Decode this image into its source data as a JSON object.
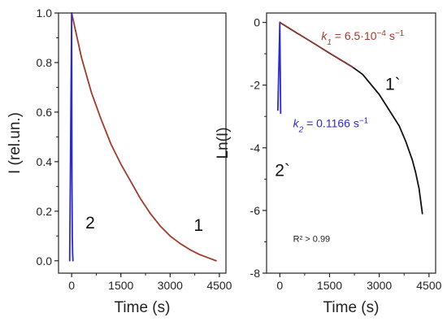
{
  "chart_data": [
    {
      "type": "line",
      "xlabel": "Time (s)",
      "ylabel": "I (rel.un.)",
      "xlim": [
        -400,
        4700
      ],
      "ylim": [
        -0.05,
        1.0
      ],
      "xticks": [
        "0",
        "1500",
        "3000",
        "4500"
      ],
      "yticks": [
        "0.0",
        "0.2",
        "0.4",
        "0.6",
        "0.8",
        "1.0"
      ],
      "series": [
        {
          "name": "1",
          "color": "#a33a2a",
          "x": [
            0,
            300,
            600,
            900,
            1200,
            1500,
            1800,
            2100,
            2400,
            2700,
            3000,
            3300,
            3600,
            3900,
            4200,
            4400
          ],
          "y": [
            1.0,
            0.82,
            0.68,
            0.57,
            0.47,
            0.39,
            0.32,
            0.25,
            0.19,
            0.14,
            0.1,
            0.07,
            0.045,
            0.025,
            0.01,
            0.0
          ]
        },
        {
          "name": "2",
          "color": "#2a2ad0",
          "x": [
            -60,
            0,
            5,
            10,
            20,
            30,
            40
          ],
          "y": [
            0.0,
            1.0,
            0.55,
            0.31,
            0.1,
            0.03,
            0.0
          ]
        }
      ],
      "curve_labels": [
        {
          "text": "1",
          "x": 3720,
          "y": 0.12,
          "color": "#111111"
        },
        {
          "text": "2",
          "x": 420,
          "y": 0.13,
          "color": "#111111"
        }
      ]
    },
    {
      "type": "line",
      "xlabel": "Time (s)",
      "ylabel": "Ln(I)",
      "xlim": [
        -400,
        4700
      ],
      "ylim": [
        -8,
        0.3
      ],
      "xticks": [
        "0",
        "1500",
        "3000",
        "4500"
      ],
      "yticks": [
        "0",
        "-2",
        "-4",
        "-6",
        "-8"
      ],
      "series": [
        {
          "name": "1`",
          "color": "#111111",
          "x": [
            0,
            500,
            1000,
            1500,
            2000,
            2200,
            2500,
            3000,
            3300,
            3600,
            3800,
            4000,
            4100,
            4200,
            4250,
            4300
          ],
          "y": [
            0.0,
            -0.33,
            -0.65,
            -0.98,
            -1.3,
            -1.43,
            -1.66,
            -2.3,
            -2.8,
            -3.3,
            -3.8,
            -4.4,
            -4.8,
            -5.3,
            -5.7,
            -6.1
          ]
        },
        {
          "name": "2`",
          "color": "#2a2ad0",
          "x": [
            -60,
            0,
            5,
            10,
            15,
            20,
            25
          ],
          "y": [
            -2.8,
            0.0,
            -0.58,
            -1.17,
            -1.75,
            -2.33,
            -2.9
          ]
        },
        {
          "name": "fit k1",
          "color": "#a33a2a",
          "x": [
            0,
            2200
          ],
          "y": [
            0.0,
            -1.43
          ]
        }
      ],
      "curve_labels": [
        {
          "text": "1`",
          "x": 3180,
          "y": -2.15,
          "color": "#111111"
        },
        {
          "text": "2`",
          "x": -150,
          "y": -4.9,
          "color": "#111111"
        }
      ],
      "annotations": {
        "k1_prefix": "k",
        "k1_sub": "1",
        "k1_value": " = 6.5·10",
        "k1_exp": "−4",
        "k1_unit": " s",
        "k1_unit_exp": "−1",
        "k1_color": "#a33a2a",
        "k2_prefix": "k",
        "k2_sub": "2",
        "k2_value": " = 0.1166 s",
        "k2_unit_exp": "−1",
        "k2_color": "#2a2ad0",
        "r2": "R² > 0.99"
      }
    }
  ]
}
